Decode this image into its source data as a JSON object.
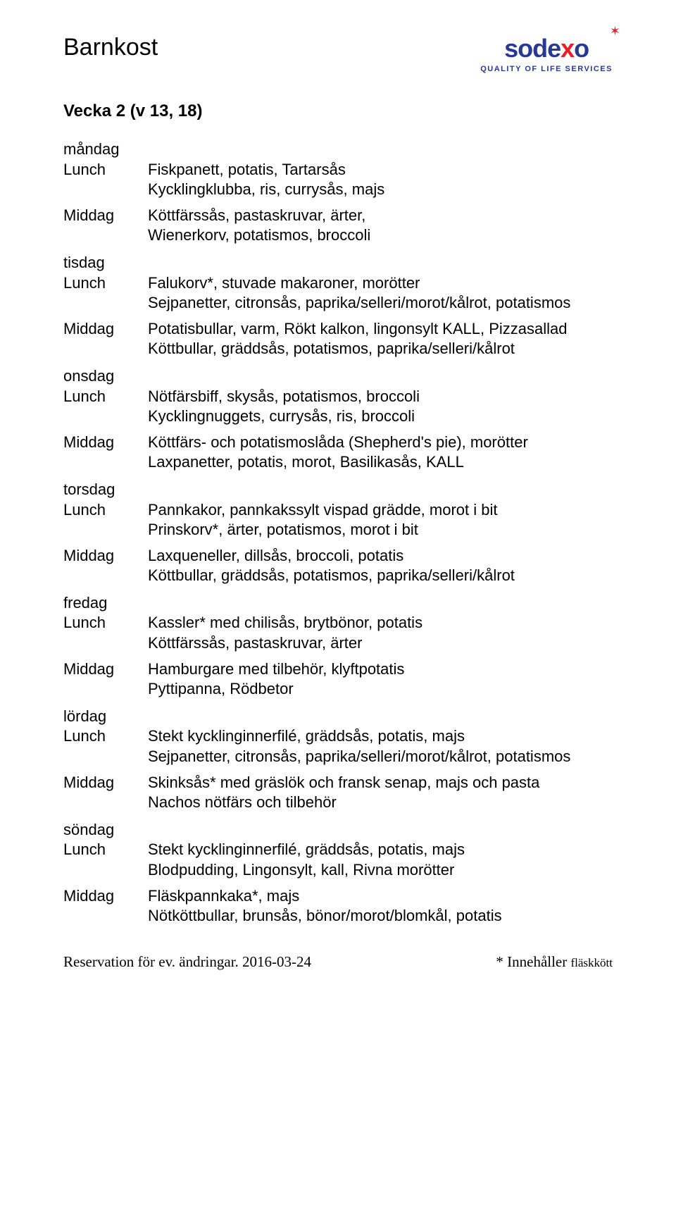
{
  "title": "Barnkost",
  "logo": {
    "text_before_x": "sode",
    "x": "x",
    "text_after_x": "o",
    "tagline": "QUALITY OF LIFE SERVICES",
    "star": "✶",
    "brand_color": "#283896",
    "accent_color": "#ed1c24"
  },
  "week_title": "Vecka 2 (v 13, 18)",
  "days": [
    {
      "day": "måndag",
      "meals": [
        {
          "label": "Lunch",
          "items": [
            "Fiskpanett, potatis, Tartarsås",
            "Kycklingklubba, ris, currysås, majs"
          ]
        },
        {
          "label": "Middag",
          "items": [
            "Köttfärssås, pastaskruvar, ärter,",
            "Wienerkorv, potatismos, broccoli"
          ]
        }
      ]
    },
    {
      "day": "tisdag",
      "meals": [
        {
          "label": "Lunch",
          "items": [
            "Falukorv*, stuvade makaroner, morötter",
            "Sejpanetter, citronsås, paprika/selleri/morot/kålrot, potatismos"
          ]
        },
        {
          "label": "Middag",
          "items": [
            "Potatisbullar, varm, Rökt kalkon, lingonsylt KALL, Pizzasallad",
            "Köttbullar, gräddsås, potatismos, paprika/selleri/kålrot"
          ]
        }
      ]
    },
    {
      "day": "onsdag",
      "meals": [
        {
          "label": "Lunch",
          "items": [
            "Nötfärsbiff, skysås, potatismos, broccoli",
            "Kycklingnuggets, currysås, ris, broccoli"
          ]
        },
        {
          "label": "Middag",
          "items": [
            "Köttfärs- och potatismoslåda (Shepherd's pie), morötter",
            "Laxpanetter, potatis, morot, Basilikasås, KALL"
          ]
        }
      ]
    },
    {
      "day": "torsdag",
      "meals": [
        {
          "label": "Lunch",
          "items": [
            "Pannkakor, pannkakssylt  vispad grädde, morot i bit",
            "Prinskorv*, ärter, potatismos, morot i bit"
          ]
        },
        {
          "label": "Middag",
          "items": [
            "Laxqueneller, dillsås, broccoli, potatis",
            "Köttbullar, gräddsås, potatismos, paprika/selleri/kålrot"
          ]
        }
      ]
    },
    {
      "day": "fredag",
      "meals": [
        {
          "label": "Lunch",
          "items": [
            "Kassler* med chilisås, brytbönor, potatis",
            "Köttfärssås, pastaskruvar, ärter"
          ]
        },
        {
          "label": "Middag",
          "items": [
            "Hamburgare med tilbehör, klyftpotatis",
            "Pyttipanna, Rödbetor"
          ]
        }
      ]
    },
    {
      "day": "lördag",
      "meals": [
        {
          "label": "Lunch",
          "items": [
            "Stekt kycklinginnerfilé, gräddsås, potatis, majs",
            "Sejpanetter, citronsås, paprika/selleri/morot/kålrot, potatismos"
          ]
        },
        {
          "label": "Middag",
          "items": [
            "Skinksås* med gräslök och fransk senap, majs och  pasta",
            "Nachos nötfärs och tilbehör"
          ]
        }
      ]
    },
    {
      "day": "söndag",
      "meals": [
        {
          "label": "Lunch",
          "items": [
            "Stekt kycklinginnerfilé, gräddsås, potatis, majs",
            "Blodpudding, Lingonsylt, kall, Rivna morötter"
          ]
        },
        {
          "label": "Middag",
          "items": [
            "Fläskpannkaka*, majs",
            "Nötköttbullar, brunsås, bönor/morot/blomkål, potatis"
          ]
        }
      ]
    }
  ],
  "footer": {
    "left": "Reservation för ev. ändringar.  2016-03-24",
    "right_main": "* Innehåller ",
    "right_small": "fläskkött"
  }
}
